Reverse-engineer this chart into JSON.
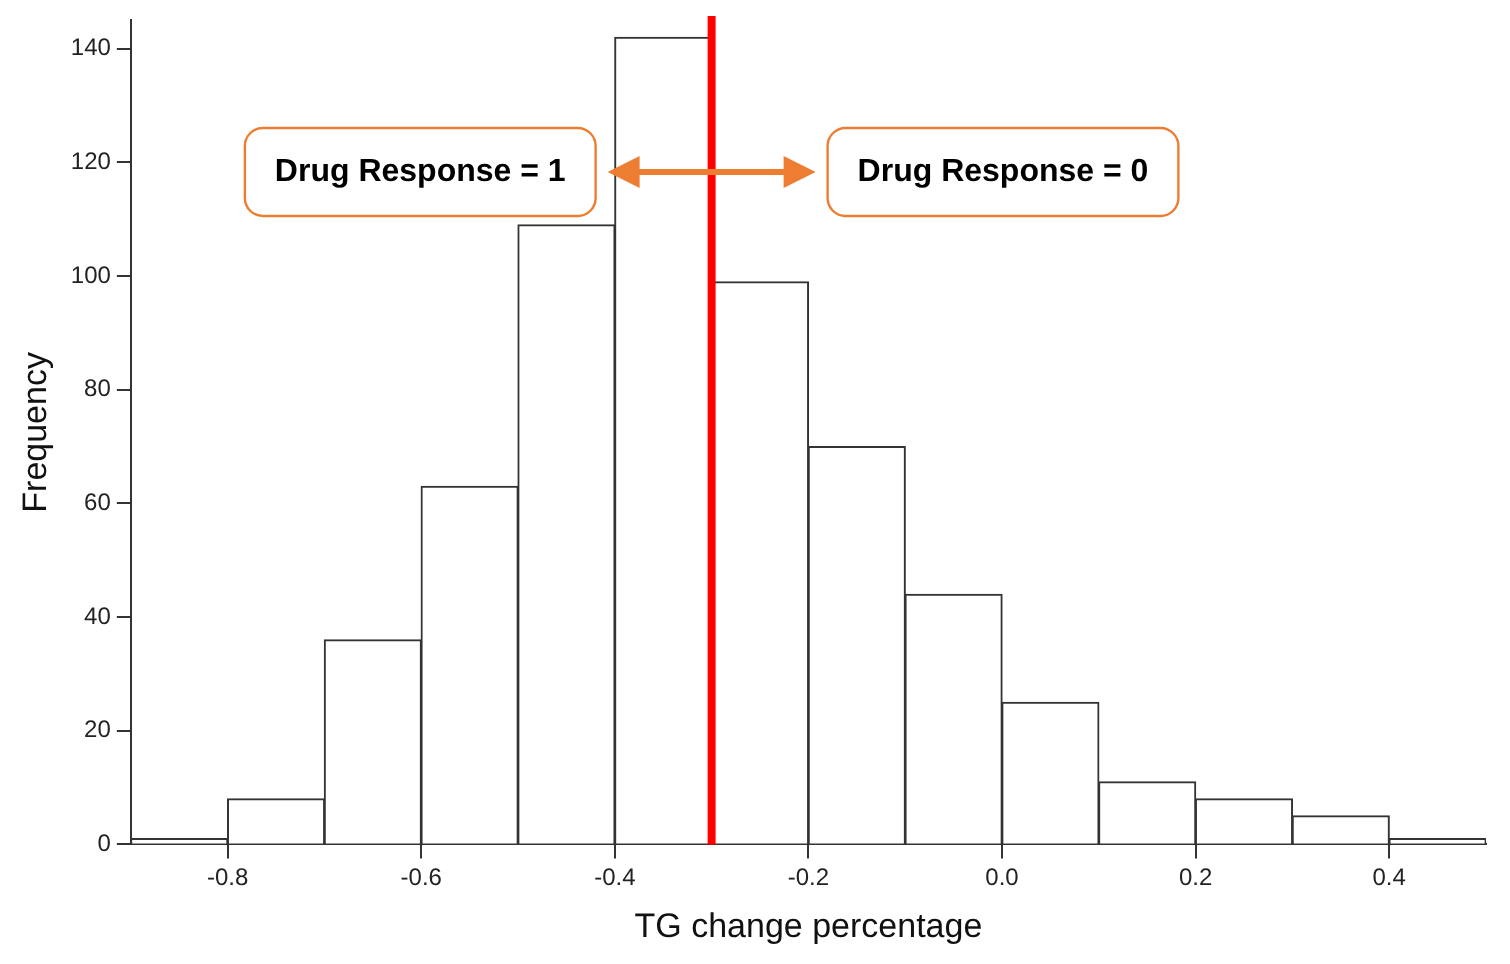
{
  "chart_data": {
    "type": "histogram",
    "xlabel": "TG change percentage",
    "ylabel": "Frequency",
    "bins": [
      -0.9,
      -0.8,
      -0.7,
      -0.6,
      -0.5,
      -0.4,
      -0.3,
      -0.2,
      -0.1,
      0.0,
      0.1,
      0.2,
      0.3,
      0.4,
      0.5
    ],
    "values": [
      1,
      8,
      36,
      63,
      109,
      142,
      99,
      70,
      44,
      25,
      11,
      8,
      5,
      1
    ],
    "color": "#ffffff",
    "xlim": [
      -0.9,
      0.5
    ],
    "xticks": [
      -0.8,
      -0.6,
      -0.4,
      -0.2,
      {
        "value": 0,
        "label": "0.0"
      },
      0.2,
      0.4
    ],
    "ylim": [
      0,
      145
    ],
    "yticks": [
      0,
      20,
      40,
      60,
      80,
      100,
      120,
      140
    ],
    "ref_lines": [
      {
        "axis": "x",
        "value": -0.3,
        "color": "#ff0000"
      }
    ],
    "annotations": [
      "Drug Response = 1",
      "Drug Response = 0"
    ],
    "grid": false,
    "legend": false
  }
}
